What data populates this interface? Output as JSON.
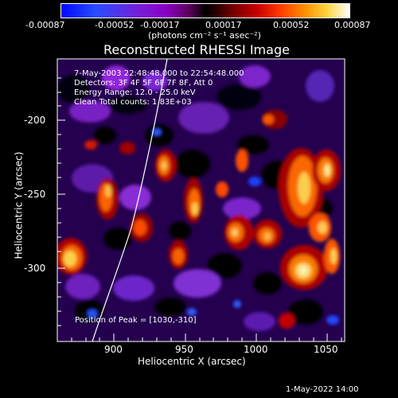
{
  "colorbar": {
    "tick_labels": [
      "-0.00087",
      "-0.00052",
      "-0.00017",
      "0.00017",
      "0.00052",
      "0.00087"
    ],
    "units_label": "(photons cm⁻² s⁻¹ asec⁻²)"
  },
  "chart_data": {
    "type": "heatmap",
    "title": "Reconstructed RHESSI Image",
    "xlabel": "Heliocentric X (arcsec)",
    "ylabel": "Heliocentric Y (arcsec)",
    "x_ticks": [
      900,
      950,
      1000,
      1050
    ],
    "y_ticks": [
      -200,
      -250,
      -300
    ],
    "xlim": [
      863,
      1059
    ],
    "ylim": [
      -352,
      -160
    ],
    "limb": "white curve",
    "overlay_lines": [
      "7-May-2003 22:48:48.000 to 22:54:48.000",
      "Detectors: 3F 4F 5F 6F 7F 8F, Att 0",
      "Energy Range: 12.0 - 25.0 keV",
      "Clean    Total counts: 1.83E+03"
    ],
    "peak_label": "Position of Peak = [1030,-310]",
    "peak": [
      1030,
      -310
    ]
  },
  "footer": {
    "date": "1-May-2022 14:00"
  }
}
